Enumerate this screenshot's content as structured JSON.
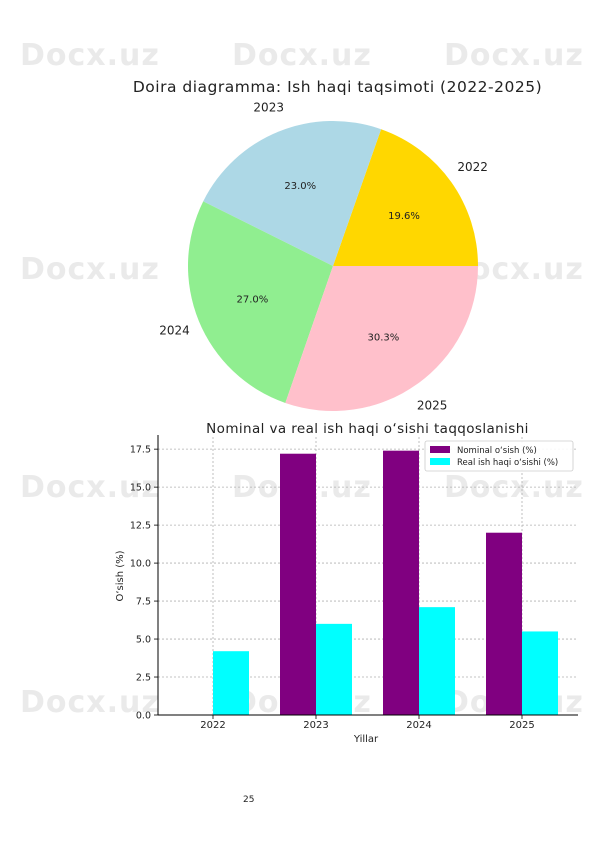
{
  "watermark": {
    "text": "Docx.uz"
  },
  "pie": {
    "chart_data": {
      "type": "pie",
      "title": "Doira diagramma: Ish haqi taqsimoti (2022-2025)",
      "labels": [
        "2022",
        "2023",
        "2024",
        "2025"
      ],
      "values": [
        19.6,
        23.0,
        27.0,
        30.3
      ],
      "value_labels": [
        "19.6%",
        "23.0%",
        "27.0%",
        "30.3%"
      ],
      "colors": [
        "#FFD700",
        "#ADD8E6",
        "#90EE90",
        "#FFC0CB"
      ]
    }
  },
  "bar": {
    "chart_data": {
      "type": "bar",
      "title": "Nominal va real ish haqi o‘sishi taqqoslanishi",
      "categories": [
        "2022",
        "2023",
        "2024",
        "2025"
      ],
      "series": [
        {
          "name": "Nominal o‘sish (%)",
          "values": [
            0,
            17.2,
            17.4,
            12.0
          ],
          "color": "#800080"
        },
        {
          "name": "Real ish haqi o‘sishi (%)",
          "values": [
            4.2,
            6.0,
            7.1,
            5.5
          ],
          "color": "#00FFFF"
        }
      ],
      "xlabel": "Yillar",
      "ylabel": "O‘sish (%)",
      "ylim": [
        0,
        18.3
      ],
      "yticks": [
        "0.0",
        "2.5",
        "5.0",
        "7.5",
        "10.0",
        "12.5",
        "15.0",
        "17.5"
      ],
      "grid": true,
      "legend_position": "top-right"
    }
  },
  "page": {
    "number": "25"
  }
}
